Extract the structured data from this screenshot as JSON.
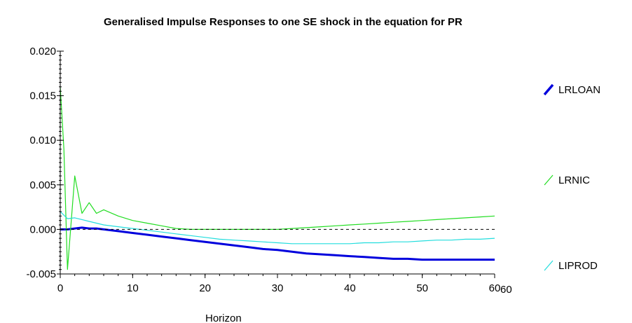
{
  "chart_data": {
    "type": "line",
    "title": "Generalised Impulse Responses to one SE shock in the equation for PR",
    "xlabel": "Horizon",
    "ylabel": "",
    "xlim": [
      0,
      60
    ],
    "ylim": [
      -0.005,
      0.02
    ],
    "x_ticks": [
      "0",
      "10",
      "20",
      "30",
      "40",
      "50",
      "60"
    ],
    "x_axis_end_label": "60",
    "y_ticks": [
      "0.020",
      "0.015",
      "0.010",
      "0.005",
      "0.000",
      "-0.005"
    ],
    "zero_line": "dashed",
    "grid": false,
    "legend_position": "right",
    "series": [
      {
        "name": "LRLOAN",
        "color": "#0000dd",
        "x": [
          0,
          1,
          2,
          3,
          4,
          5,
          6,
          8,
          10,
          12,
          14,
          16,
          18,
          20,
          22,
          24,
          26,
          28,
          30,
          32,
          34,
          36,
          38,
          40,
          42,
          44,
          46,
          48,
          50,
          52,
          54,
          56,
          58,
          60
        ],
        "y": [
          0.0,
          0.0,
          0.0001,
          0.0002,
          0.0001,
          0.0001,
          0.0,
          -0.0002,
          -0.0004,
          -0.0006,
          -0.0008,
          -0.001,
          -0.0012,
          -0.0014,
          -0.0016,
          -0.0018,
          -0.002,
          -0.0022,
          -0.0023,
          -0.0025,
          -0.0027,
          -0.0028,
          -0.0029,
          -0.003,
          -0.0031,
          -0.0032,
          -0.0033,
          -0.0033,
          -0.0034,
          -0.0034,
          -0.0034,
          -0.0034,
          -0.0034,
          -0.0034
        ]
      },
      {
        "name": "LRNIC",
        "color": "#22dd22",
        "x": [
          0,
          0.5,
          1,
          2,
          3,
          4,
          5,
          6,
          8,
          10,
          12,
          14,
          16,
          18,
          20,
          22,
          24,
          26,
          28,
          30,
          32,
          34,
          36,
          38,
          40,
          42,
          44,
          46,
          48,
          50,
          52,
          54,
          56,
          58,
          60
        ],
        "y": [
          0.016,
          0.009,
          -0.0045,
          0.006,
          0.0018,
          0.003,
          0.0018,
          0.0022,
          0.0015,
          0.001,
          0.0007,
          0.0004,
          0.0001,
          0.0,
          0.0,
          0.0,
          0.0,
          0.0,
          0.0,
          0.0,
          0.0001,
          0.0002,
          0.0003,
          0.0004,
          0.0005,
          0.0006,
          0.0007,
          0.0008,
          0.0009,
          0.001,
          0.0011,
          0.0012,
          0.0013,
          0.0014,
          0.0015
        ]
      },
      {
        "name": "LIPROD",
        "color": "#22dddd",
        "x": [
          0,
          1,
          2,
          3,
          4,
          5,
          6,
          8,
          10,
          12,
          14,
          16,
          18,
          20,
          22,
          24,
          26,
          28,
          30,
          32,
          34,
          36,
          38,
          40,
          42,
          44,
          46,
          48,
          50,
          52,
          54,
          56,
          58,
          60
        ],
        "y": [
          0.002,
          0.0012,
          0.0013,
          0.0011,
          0.0009,
          0.0007,
          0.0005,
          0.0003,
          0.0001,
          -0.0001,
          -0.0003,
          -0.0005,
          -0.0007,
          -0.0009,
          -0.0011,
          -0.0012,
          -0.0013,
          -0.0014,
          -0.0015,
          -0.0016,
          -0.0016,
          -0.0016,
          -0.0016,
          -0.0016,
          -0.0015,
          -0.0015,
          -0.0014,
          -0.0014,
          -0.0013,
          -0.0012,
          -0.0012,
          -0.0011,
          -0.0011,
          -0.001
        ]
      }
    ]
  }
}
